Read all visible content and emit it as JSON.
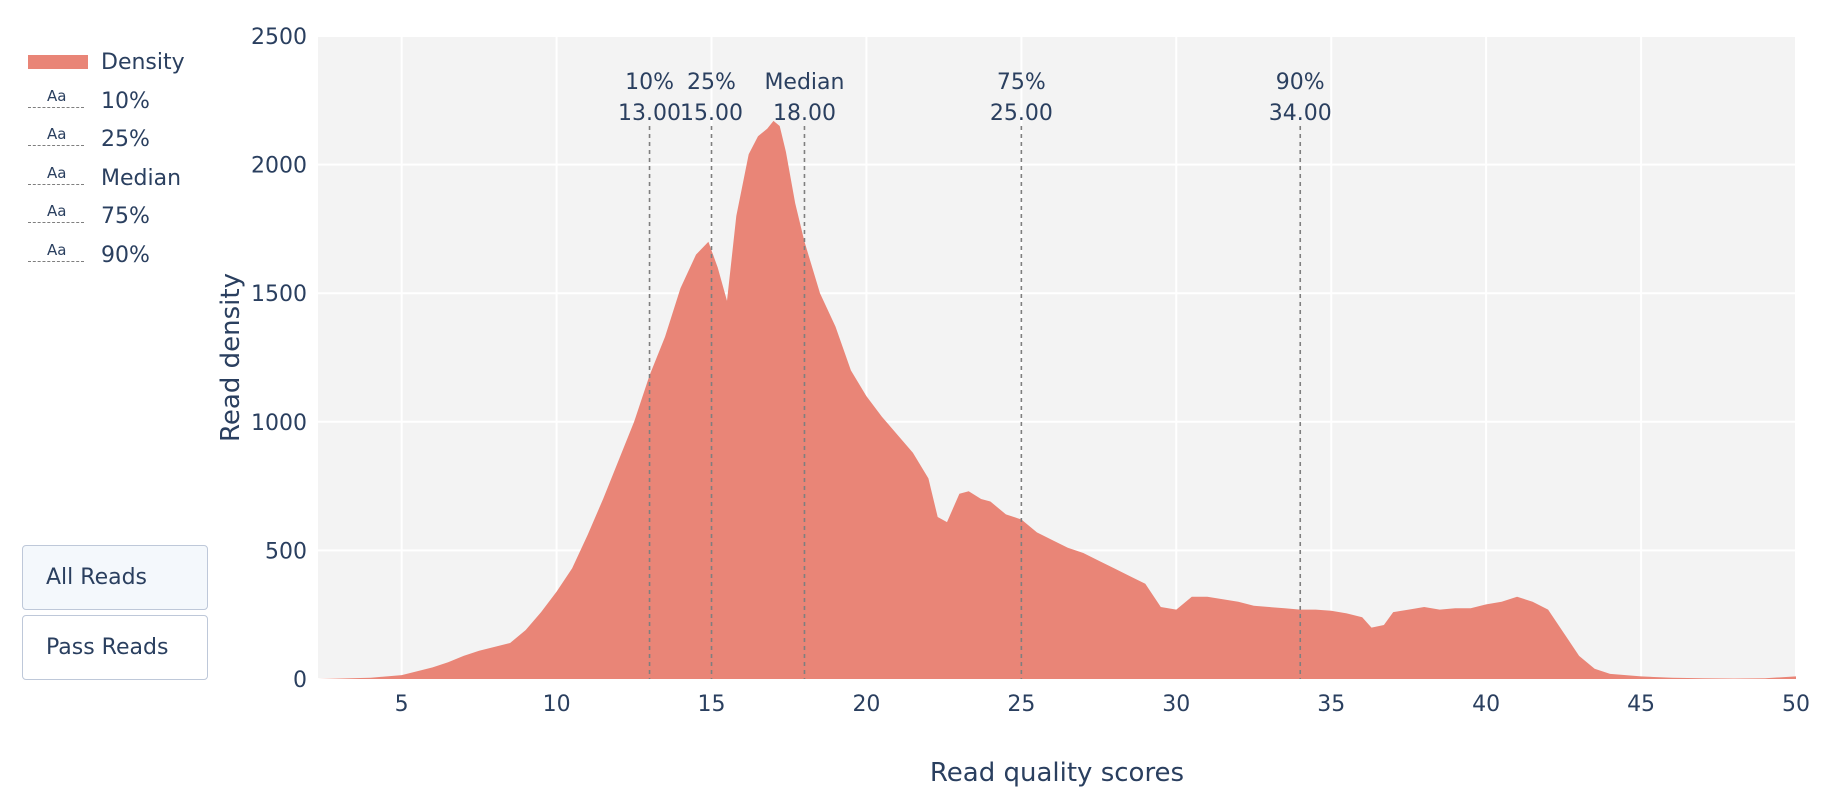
{
  "legend": {
    "items": [
      {
        "label": "Density",
        "kind": "area"
      },
      {
        "label": "10%",
        "kind": "line",
        "glyph": "Aa"
      },
      {
        "label": "25%",
        "kind": "line",
        "glyph": "Aa"
      },
      {
        "label": "Median",
        "kind": "line",
        "glyph": "Aa"
      },
      {
        "label": "75%",
        "kind": "line",
        "glyph": "Aa"
      },
      {
        "label": "90%",
        "kind": "line",
        "glyph": "Aa"
      }
    ]
  },
  "buttons": {
    "all_reads": "All Reads",
    "pass_reads": "Pass Reads",
    "active": "all_reads"
  },
  "colors": {
    "density_fill": "#e98577",
    "plot_bg": "#f3f3f3",
    "grid": "#ffffff",
    "marker_line": "#7f7f7f",
    "text": "#2a3f5f"
  },
  "chart_data": {
    "type": "area",
    "xlabel": "Read quality scores",
    "ylabel": "Read density",
    "xlim": [
      2.3,
      50
    ],
    "ylim": [
      0,
      2500
    ],
    "xticks": [
      5,
      10,
      15,
      20,
      25,
      30,
      35,
      40,
      45,
      50
    ],
    "yticks": [
      0,
      500,
      1000,
      1500,
      2000,
      2500
    ],
    "grid": true,
    "legend_position": "left",
    "series": [
      {
        "name": "Density",
        "x": [
          2.3,
          3,
          4,
          5,
          5.5,
          6,
          6.5,
          7,
          7.5,
          8,
          8.5,
          9,
          9.5,
          10,
          10.5,
          11,
          11.5,
          12,
          12.5,
          13,
          13.5,
          14,
          14.5,
          14.9,
          15.2,
          15.5,
          15.8,
          16.2,
          16.5,
          16.8,
          17,
          17.2,
          17.4,
          17.7,
          18,
          18.5,
          19,
          19.5,
          20,
          20.5,
          21,
          21.5,
          22,
          22.3,
          22.6,
          23,
          23.3,
          23.7,
          24,
          24.5,
          25,
          25.5,
          26,
          26.5,
          27,
          27.5,
          28,
          28.5,
          29,
          29.5,
          30,
          30.5,
          31,
          31.5,
          32,
          32.5,
          33,
          33.5,
          34,
          34.5,
          35,
          35.5,
          36,
          36.3,
          36.7,
          37,
          37.5,
          38,
          38.5,
          39,
          39.5,
          40,
          40.5,
          41,
          41.5,
          42,
          42.5,
          43,
          43.5,
          44,
          45,
          46,
          47,
          48,
          49,
          50
        ],
        "y": [
          0,
          2,
          5,
          15,
          30,
          45,
          65,
          90,
          110,
          125,
          140,
          190,
          260,
          340,
          430,
          560,
          700,
          850,
          1000,
          1180,
          1330,
          1520,
          1650,
          1700,
          1600,
          1470,
          1800,
          2040,
          2110,
          2140,
          2170,
          2150,
          2050,
          1850,
          1700,
          1500,
          1370,
          1200,
          1100,
          1020,
          950,
          880,
          780,
          630,
          610,
          720,
          730,
          700,
          690,
          640,
          620,
          570,
          540,
          510,
          490,
          460,
          430,
          400,
          370,
          280,
          270,
          320,
          320,
          310,
          300,
          285,
          280,
          275,
          270,
          270,
          265,
          255,
          240,
          200,
          210,
          260,
          270,
          280,
          270,
          275,
          275,
          290,
          300,
          320,
          300,
          270,
          180,
          90,
          40,
          20,
          10,
          5,
          3,
          2,
          3,
          10
        ]
      }
    ],
    "markers": [
      {
        "name": "10%",
        "x": 13,
        "label_line1": "10%",
        "label_line2": "13.00"
      },
      {
        "name": "25%",
        "x": 15,
        "label_line1": "25%",
        "label_line2": "15.00"
      },
      {
        "name": "Median",
        "x": 18,
        "label_line1": "Median",
        "label_line2": "18.00"
      },
      {
        "name": "75%",
        "x": 25,
        "label_line1": "75%",
        "label_line2": "25.00"
      },
      {
        "name": "90%",
        "x": 34,
        "label_line1": "90%",
        "label_line2": "34.00"
      }
    ]
  }
}
